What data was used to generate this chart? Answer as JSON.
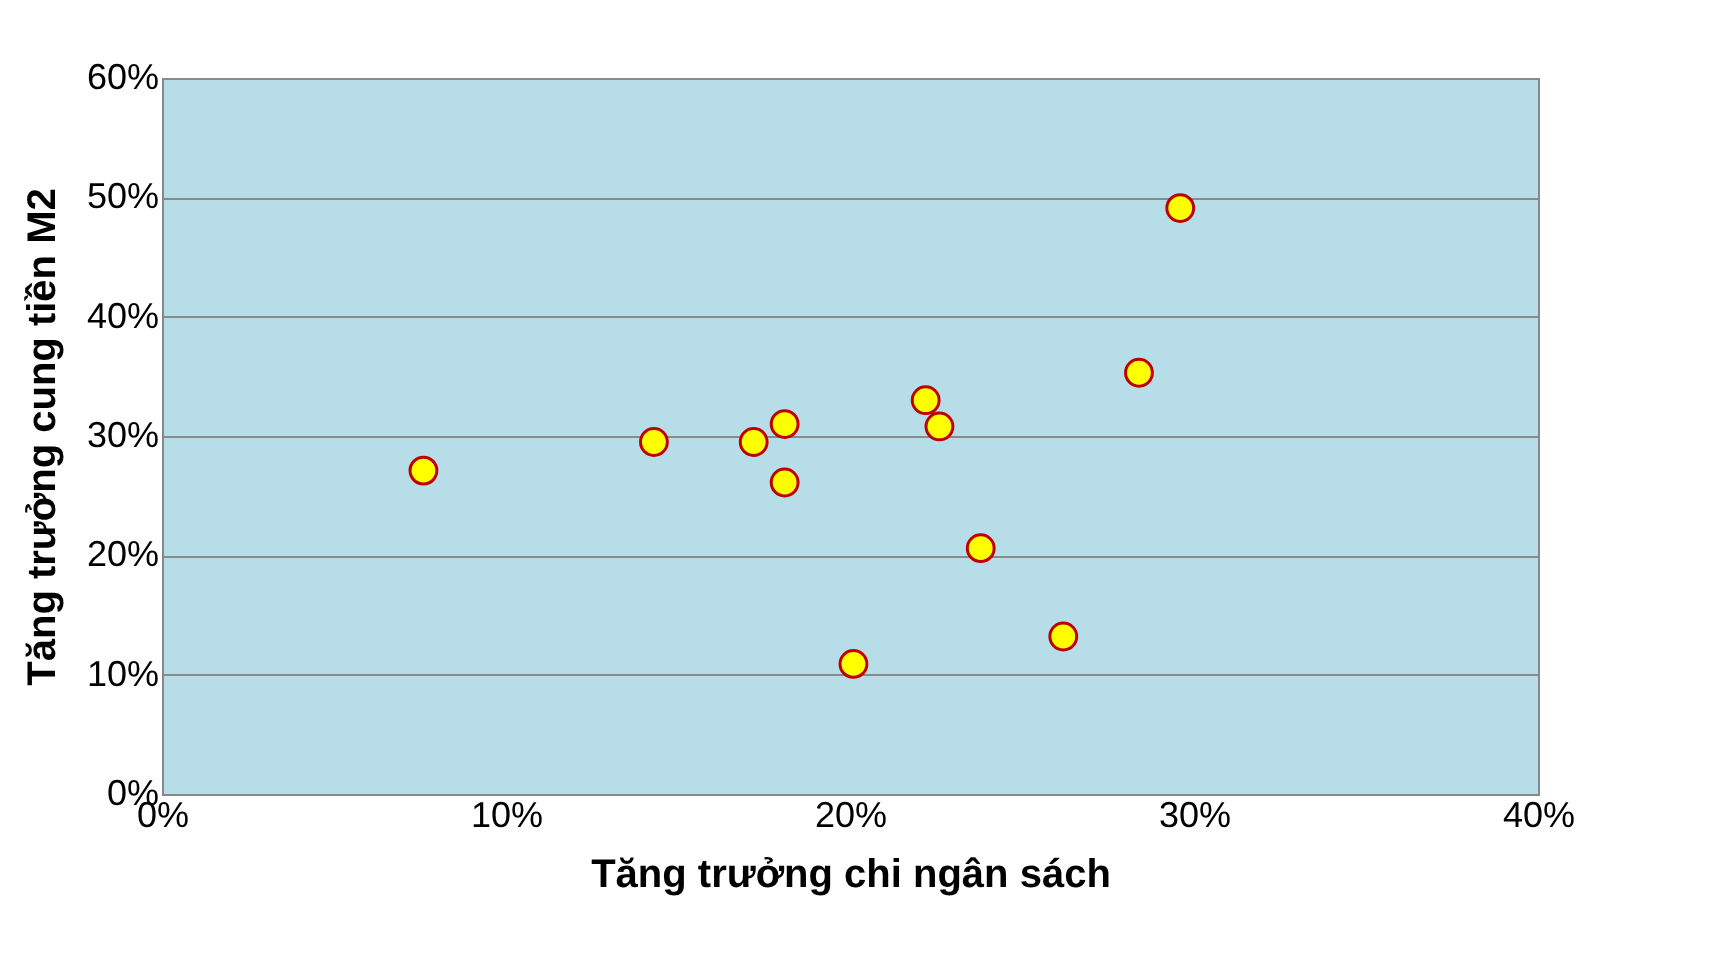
{
  "chart_data": {
    "type": "scatter",
    "xlabel": "Tăng trưởng chi ngân sách",
    "ylabel": "Tăng trưởng cung tiền M2",
    "x": [
      7.6,
      14.3,
      17.2,
      18.1,
      18.1,
      20.1,
      22.2,
      22.6,
      23.8,
      26.2,
      28.4,
      29.6
    ],
    "series": [
      {
        "color": "#ffff00",
        "values": [
          27.1,
          29.5,
          29.5,
          31.0,
          26.1,
          10.9,
          33.0,
          30.8,
          20.6,
          13.2,
          35.3,
          49.1
        ]
      }
    ],
    "xlim": [
      0,
      40
    ],
    "xticks": [
      {
        "value": 0,
        "label": "0%"
      },
      {
        "value": 10,
        "label": "10%"
      },
      {
        "value": 20,
        "label": "20%"
      },
      {
        "value": 30,
        "label": "30%"
      },
      {
        "value": 40,
        "label": "40%"
      }
    ],
    "ylim": [
      0,
      60
    ],
    "yticks": [
      {
        "value": 0,
        "label": "0%"
      },
      {
        "value": 10,
        "label": "10%"
      },
      {
        "value": 20,
        "label": "20%"
      },
      {
        "value": 30,
        "label": "30%"
      },
      {
        "value": 40,
        "label": "40%"
      },
      {
        "value": 50,
        "label": "50%"
      },
      {
        "value": 60,
        "label": "60%"
      }
    ],
    "grid": "y",
    "marker": "circle"
  }
}
